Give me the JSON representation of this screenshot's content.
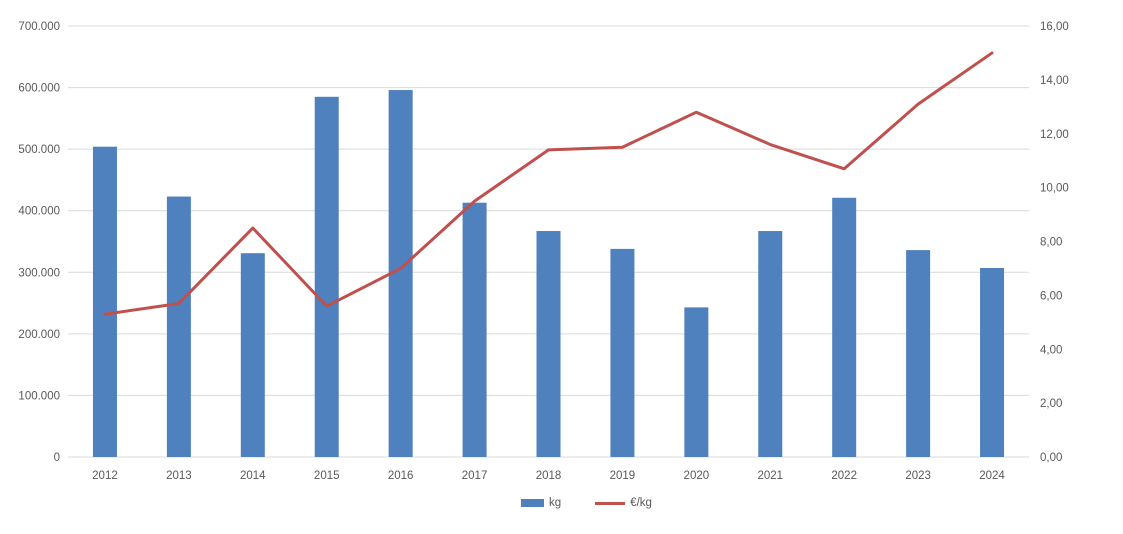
{
  "chart_data": {
    "type": "combo",
    "title": "",
    "xlabel": "",
    "ylabel": "",
    "grid": true,
    "categories": [
      "2012",
      "2013",
      "2014",
      "2015",
      "2016",
      "2017",
      "2018",
      "2019",
      "2020",
      "2021",
      "2022",
      "2023",
      "2024"
    ],
    "series": [
      {
        "name": "kg",
        "type": "bar",
        "axis": "left",
        "color": "#4e81bd",
        "values": [
          504000,
          423000,
          331000,
          585000,
          596000,
          413000,
          367000,
          338000,
          243000,
          367000,
          421000,
          336000,
          307000
        ]
      },
      {
        "name": "€/kg",
        "type": "line",
        "axis": "right",
        "color": "#c0504d",
        "values": [
          5.3,
          5.7,
          8.5,
          5.6,
          7.0,
          9.5,
          11.4,
          11.5,
          12.8,
          11.6,
          10.7,
          13.1,
          15.0
        ]
      }
    ],
    "left_axis": {
      "min": 0,
      "max": 700000,
      "tick_step": 100000,
      "tick_labels": [
        "0",
        "100.000",
        "200.000",
        "300.000",
        "400.000",
        "500.000",
        "600.000",
        "700.000"
      ]
    },
    "right_axis": {
      "min": 0,
      "max": 16,
      "tick_step": 2,
      "tick_labels": [
        "0,00",
        "2,00",
        "4,00",
        "6,00",
        "8,00",
        "10,00",
        "12,00",
        "14,00",
        "16,00"
      ]
    },
    "legend": {
      "position": "bottom",
      "entries": [
        "kg",
        "€/kg"
      ]
    }
  },
  "colors": {
    "bar": "#4e81bd",
    "line": "#c0504d",
    "gridline": "#d9d9d9",
    "axis_text": "#595959",
    "background": "#ffffff"
  }
}
